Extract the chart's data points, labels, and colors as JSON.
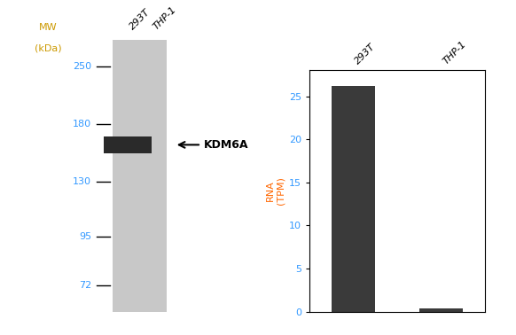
{
  "wb_panel": {
    "lane_labels": [
      "293T",
      "THP-1"
    ],
    "lane_label_color": "#000000",
    "gel_color": "#c8c8c8",
    "band_color": "#2a2a2a",
    "band_label": "KDM6A",
    "band_label_color": "#000000",
    "arrow_color": "#000000",
    "mw_label": "MW\n(kDa)",
    "mw_label_color": "#cc9900",
    "mw_ticks": [
      250,
      180,
      130,
      95,
      72
    ],
    "mw_tick_color": "#3399ff",
    "band_mw": 160,
    "ylim_log": [
      62,
      290
    ],
    "background_color": "#ffffff"
  },
  "bar_panel": {
    "categories": [
      "293T",
      "THP-1"
    ],
    "values": [
      26.2,
      0.35
    ],
    "bar_color": "#3a3a3a",
    "ylabel_line1": "RNA",
    "ylabel_line2": "(TPM)",
    "ylabel_color": "#ff6600",
    "ytick_color": "#3399ff",
    "yticks": [
      0,
      5,
      10,
      15,
      20,
      25
    ],
    "ylim": [
      0,
      28
    ],
    "background_color": "#ffffff",
    "bar_width": 0.5
  }
}
